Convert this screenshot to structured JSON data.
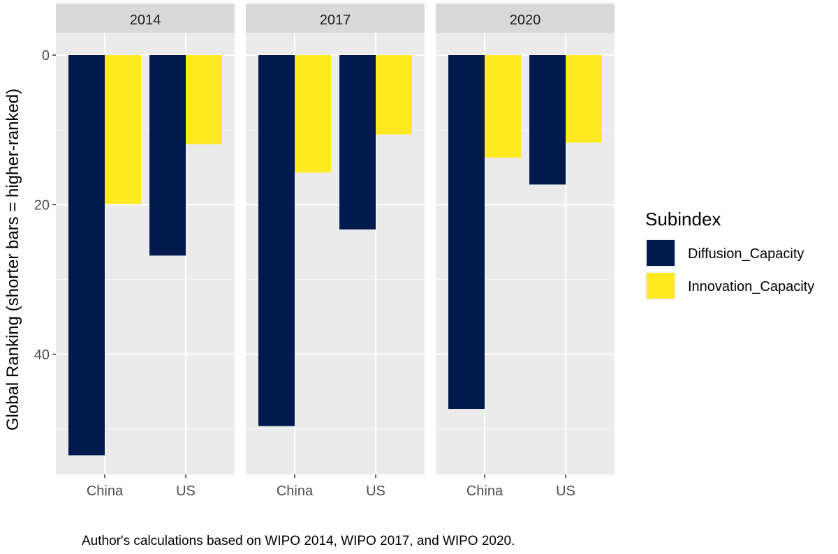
{
  "chart_data": {
    "type": "bar",
    "facets": [
      "2014",
      "2017",
      "2020"
    ],
    "categories": [
      "China",
      "US"
    ],
    "series": [
      {
        "name": "Diffusion_Capacity",
        "color": "#001a4d",
        "values": {
          "2014": [
            53.5,
            26.8
          ],
          "2017": [
            49.6,
            23.3
          ],
          "2020": [
            47.3,
            17.3
          ]
        }
      },
      {
        "name": "Innovation_Capacity",
        "color": "#ffe920",
        "values": {
          "2014": [
            19.9,
            11.9
          ],
          "2017": [
            15.7,
            10.6
          ],
          "2020": [
            13.7,
            11.7
          ]
        }
      }
    ],
    "ylabel": "Global Ranking (shorter bars = higher-ranked)",
    "xlabel": "",
    "ylim": [
      0,
      56
    ],
    "y_reversed": true,
    "y_ticks": [
      "0",
      "20",
      "40"
    ],
    "legend_title": "Subindex",
    "legend_position": "right",
    "caption": "Author's calculations based on WIPO 2014, WIPO 2017, and WIPO 2020.",
    "grid": true
  }
}
